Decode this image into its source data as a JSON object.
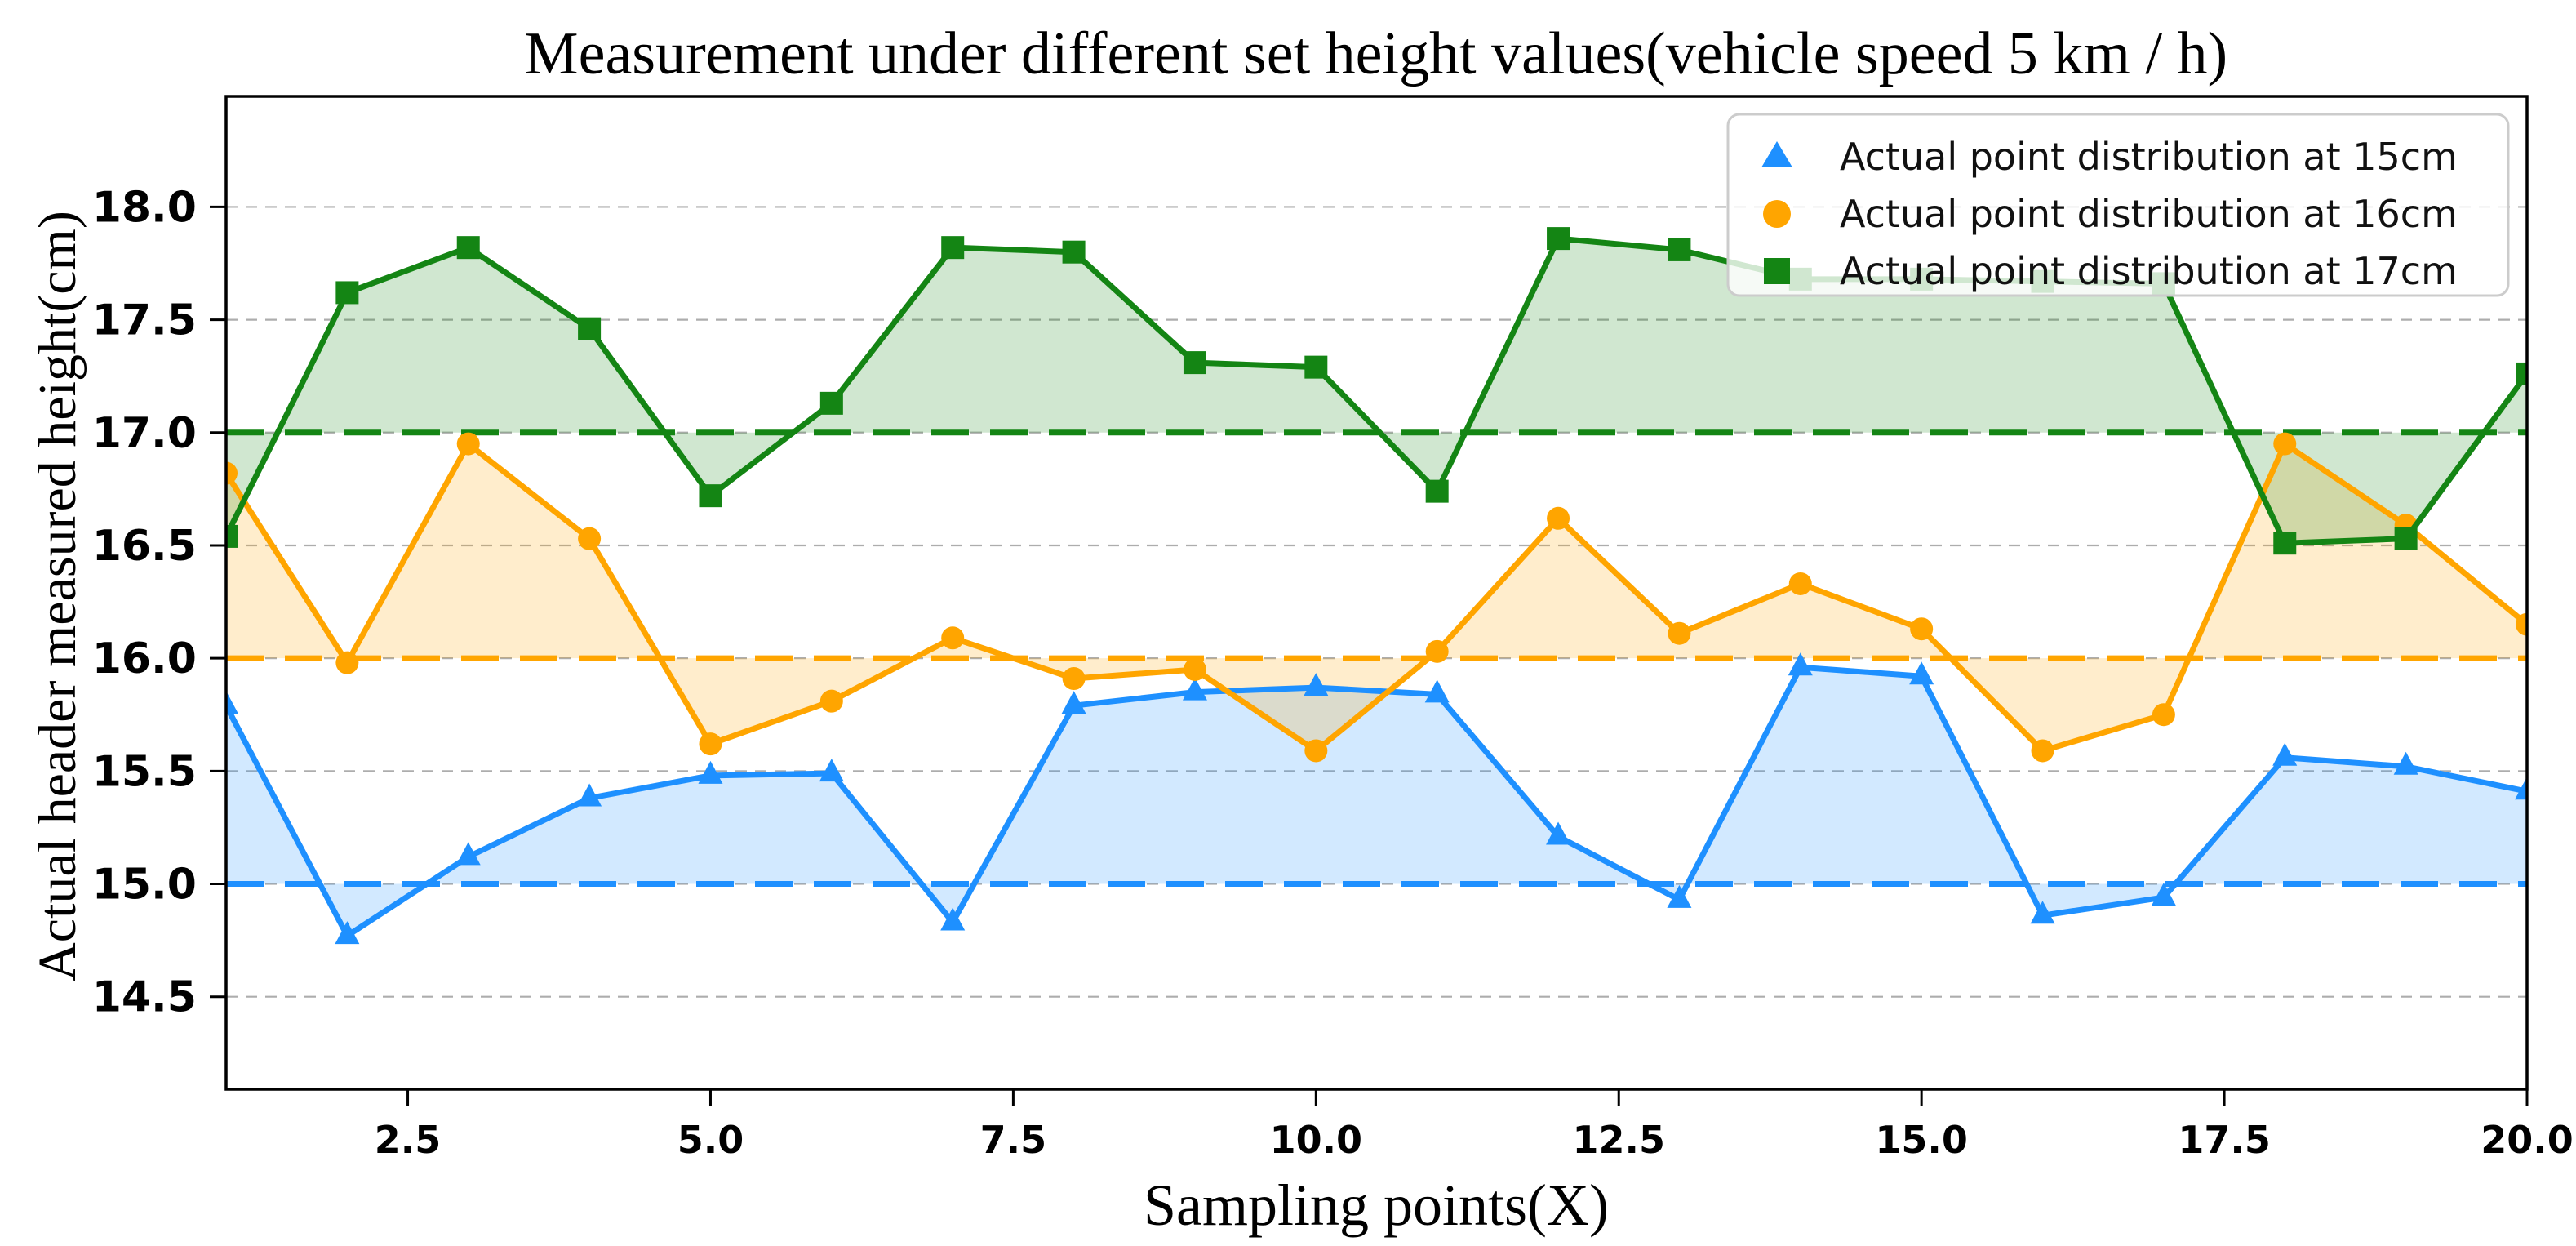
{
  "figure": {
    "background": "#ffffff"
  },
  "chart_data": {
    "type": "line",
    "title": "Measurement under different set height values(vehicle speed 5 km / h)",
    "xlabel": "Sampling points(X)",
    "ylabel": "Actual header measured height(cm)",
    "xlim": [
      1,
      20
    ],
    "ylim": [
      14.09,
      18.49
    ],
    "grid": {
      "on": true,
      "color": "#ADADAD",
      "style": "dashed"
    },
    "legend_position": "upper right",
    "x": [
      1,
      2,
      3,
      4,
      5,
      6,
      7,
      8,
      9,
      10,
      11,
      12,
      13,
      14,
      15,
      16,
      17,
      18,
      19,
      20
    ],
    "xticks": {
      "values": [
        2.5,
        5.0,
        7.5,
        10.0,
        12.5,
        15.0,
        17.5,
        20.0
      ],
      "labels": [
        "2.5",
        "5.0",
        "7.5",
        "10.0",
        "12.5",
        "15.0",
        "17.5",
        "20.0"
      ]
    },
    "yticks": {
      "values": [
        14.5,
        15.0,
        15.5,
        16.0,
        16.5,
        17.0,
        17.5,
        18.0
      ],
      "labels": [
        "14.5",
        "15.0",
        "15.5",
        "16.0",
        "16.5",
        "17.0",
        "17.5",
        "18.0"
      ]
    },
    "series": [
      {
        "name": "Actual point distribution at 15cm",
        "color": "#1E90FF",
        "marker": "triangle-up",
        "ref_line": 15.0,
        "fill_opacity": 0.2,
        "values": [
          15.79,
          14.77,
          15.12,
          15.38,
          15.48,
          15.49,
          14.83,
          15.79,
          15.85,
          15.87,
          15.84,
          15.21,
          14.93,
          15.96,
          15.92,
          14.86,
          14.94,
          15.56,
          15.52,
          15.41
        ]
      },
      {
        "name": "Actual point distribution at 16cm",
        "color": "#FFA500",
        "marker": "circle",
        "ref_line": 16.0,
        "fill_opacity": 0.2,
        "values": [
          16.82,
          15.98,
          16.95,
          16.53,
          15.62,
          15.81,
          16.09,
          15.91,
          15.95,
          15.59,
          16.03,
          16.62,
          16.11,
          16.33,
          16.13,
          15.59,
          15.75,
          16.95,
          16.59,
          16.15
        ]
      },
      {
        "name": "Actual point distribution at 17cm",
        "color": "#148514",
        "marker": "square",
        "ref_line": 17.0,
        "fill_opacity": 0.2,
        "values": [
          16.54,
          17.62,
          17.82,
          17.46,
          16.72,
          17.13,
          17.82,
          17.8,
          17.31,
          17.29,
          16.74,
          17.86,
          17.81,
          17.68,
          17.68,
          17.67,
          17.66,
          16.51,
          16.53,
          17.26
        ]
      }
    ]
  }
}
